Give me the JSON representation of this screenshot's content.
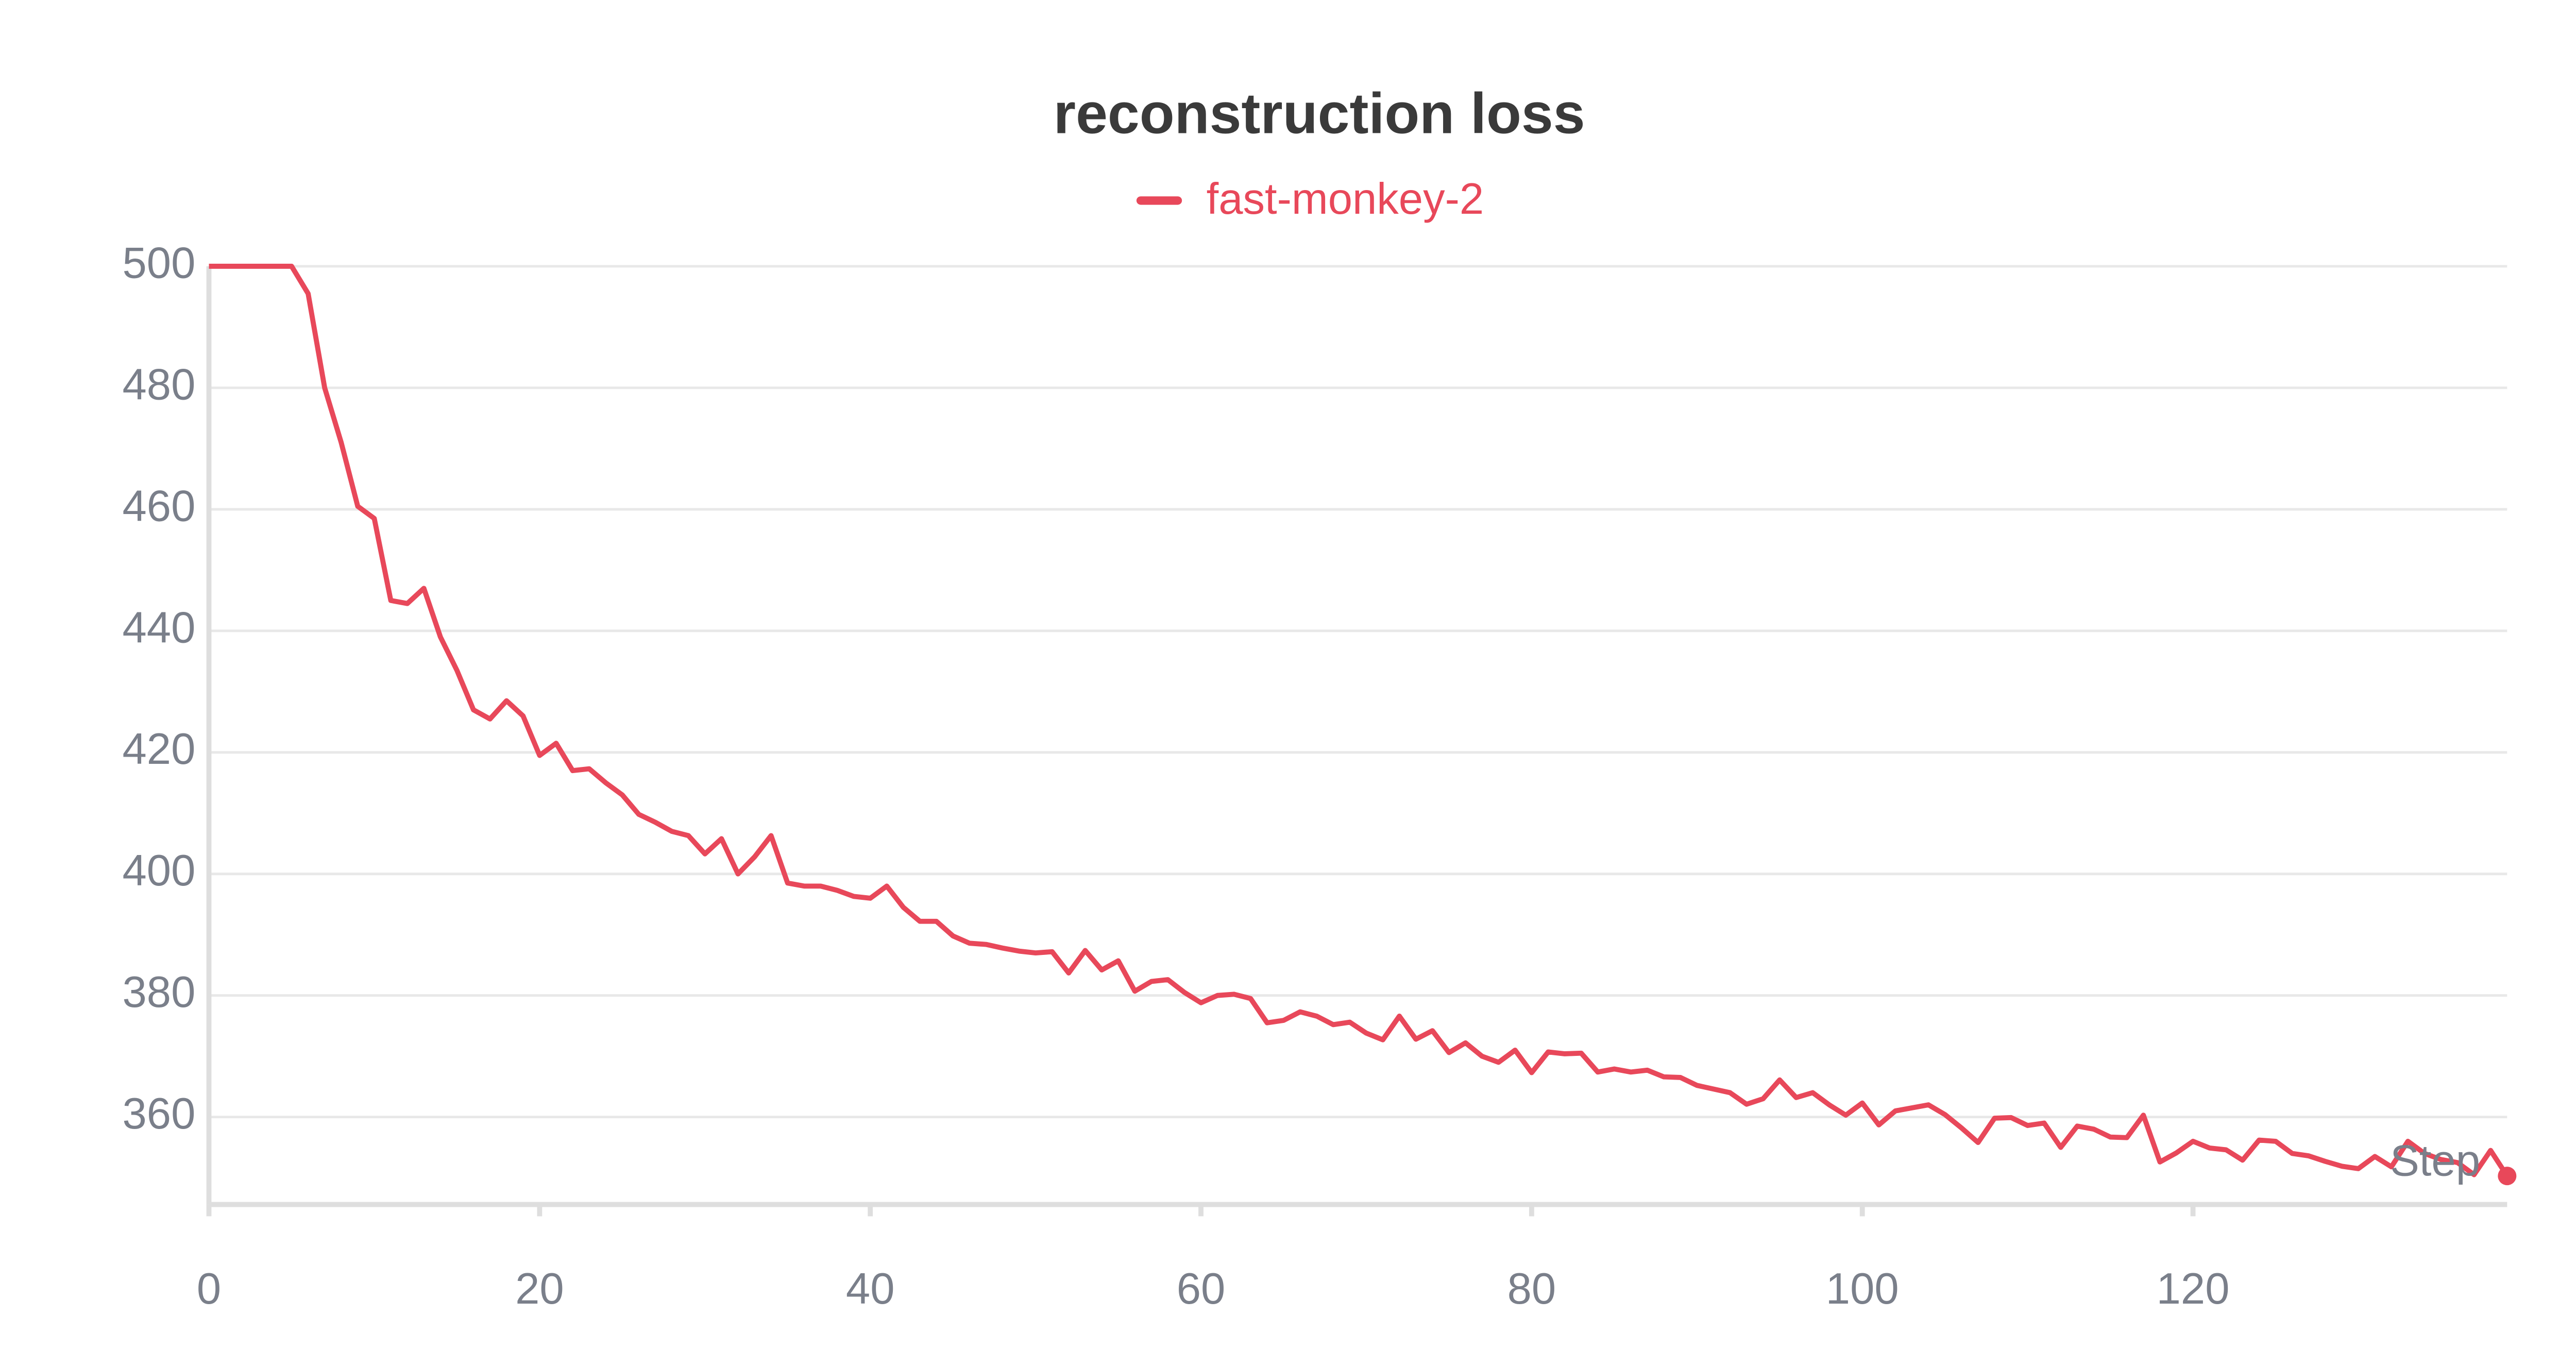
{
  "chart_data": {
    "type": "line",
    "title": "reconstruction loss",
    "x_label": "Step",
    "x": [
      0,
      1,
      2,
      3,
      4,
      5,
      6,
      7,
      8,
      9,
      10,
      11,
      12,
      13,
      14,
      15,
      16,
      17,
      18,
      19,
      20,
      21,
      22,
      23,
      24,
      25,
      26,
      27,
      28,
      29,
      30,
      31,
      32,
      33,
      34,
      35,
      36,
      37,
      38,
      39,
      40,
      41,
      42,
      43,
      44,
      45,
      46,
      47,
      48,
      49,
      50,
      51,
      52,
      53,
      54,
      55,
      56,
      57,
      58,
      59,
      60,
      61,
      62,
      63,
      64,
      65,
      66,
      67,
      68,
      69,
      70,
      71,
      72,
      73,
      74,
      75,
      76,
      77,
      78,
      79,
      80,
      81,
      82,
      83,
      84,
      85,
      86,
      87,
      88,
      89,
      90,
      91,
      92,
      93,
      94,
      95,
      96,
      97,
      98,
      99,
      100,
      101,
      102,
      103,
      104,
      105,
      106,
      107,
      108,
      109,
      110,
      111,
      112,
      113,
      114,
      115,
      116,
      117,
      118,
      119,
      120,
      121,
      122,
      123,
      124,
      125,
      126,
      127,
      128,
      129,
      130,
      131,
      132,
      133,
      134,
      135,
      136,
      137,
      138,
      139
    ],
    "series": [
      {
        "name": "fast-monkey-2",
        "color": "#e8485a",
        "values": [
          500,
          500,
          500,
          500,
          500,
          500,
          495.5,
          480,
          471,
          460.5,
          458.5,
          445,
          444.5,
          447,
          439,
          433.5,
          427,
          425.5,
          428.5,
          426,
          419.5,
          421.5,
          417,
          417.3,
          415,
          413,
          409.8,
          408.5,
          407,
          406.3,
          403.3,
          405.8,
          400,
          402.8,
          406.3,
          398.5,
          398,
          398,
          397.3,
          396.3,
          396,
          398,
          394.5,
          392.2,
          392.2,
          389.8,
          388.6,
          388.4,
          387.8,
          387.3,
          387,
          387.2,
          383.7,
          387.4,
          384.2,
          385.7,
          380.7,
          382.3,
          382.6,
          380.5,
          378.8,
          380,
          380.2,
          379.5,
          375.5,
          375.9,
          377.3,
          376.6,
          375.2,
          375.6,
          373.8,
          372.7,
          376.6,
          372.8,
          374.2,
          370.6,
          372.2,
          370,
          369,
          371,
          367.3,
          370.7,
          370.4,
          370.5,
          367.4,
          367.9,
          367.4,
          367.7,
          366.6,
          366.5,
          365.2,
          364.6,
          364,
          362.1,
          363,
          366.1,
          363.2,
          364,
          362,
          360.3,
          362.3,
          358.7,
          361,
          361.5,
          362,
          360.4,
          358.2,
          355.8,
          359.8,
          359.9,
          358.6,
          359,
          355,
          358.5,
          358,
          356.7,
          356.6,
          360.3,
          352.6,
          354.1,
          356,
          354.9,
          354.6,
          352.9,
          356.2,
          356,
          354,
          353.6,
          352.7,
          351.9,
          351.5,
          353.5,
          351.8,
          356,
          354,
          353,
          352.5,
          350.5,
          354.5,
          350.3
        ]
      }
    ],
    "xlim": [
      0,
      139
    ],
    "xticks": [
      0,
      20,
      40,
      60,
      80,
      100,
      120
    ],
    "ylim": [
      345.6,
      500
    ],
    "yticks": [
      360,
      380,
      400,
      420,
      440,
      460,
      480,
      500
    ],
    "grid": true
  }
}
